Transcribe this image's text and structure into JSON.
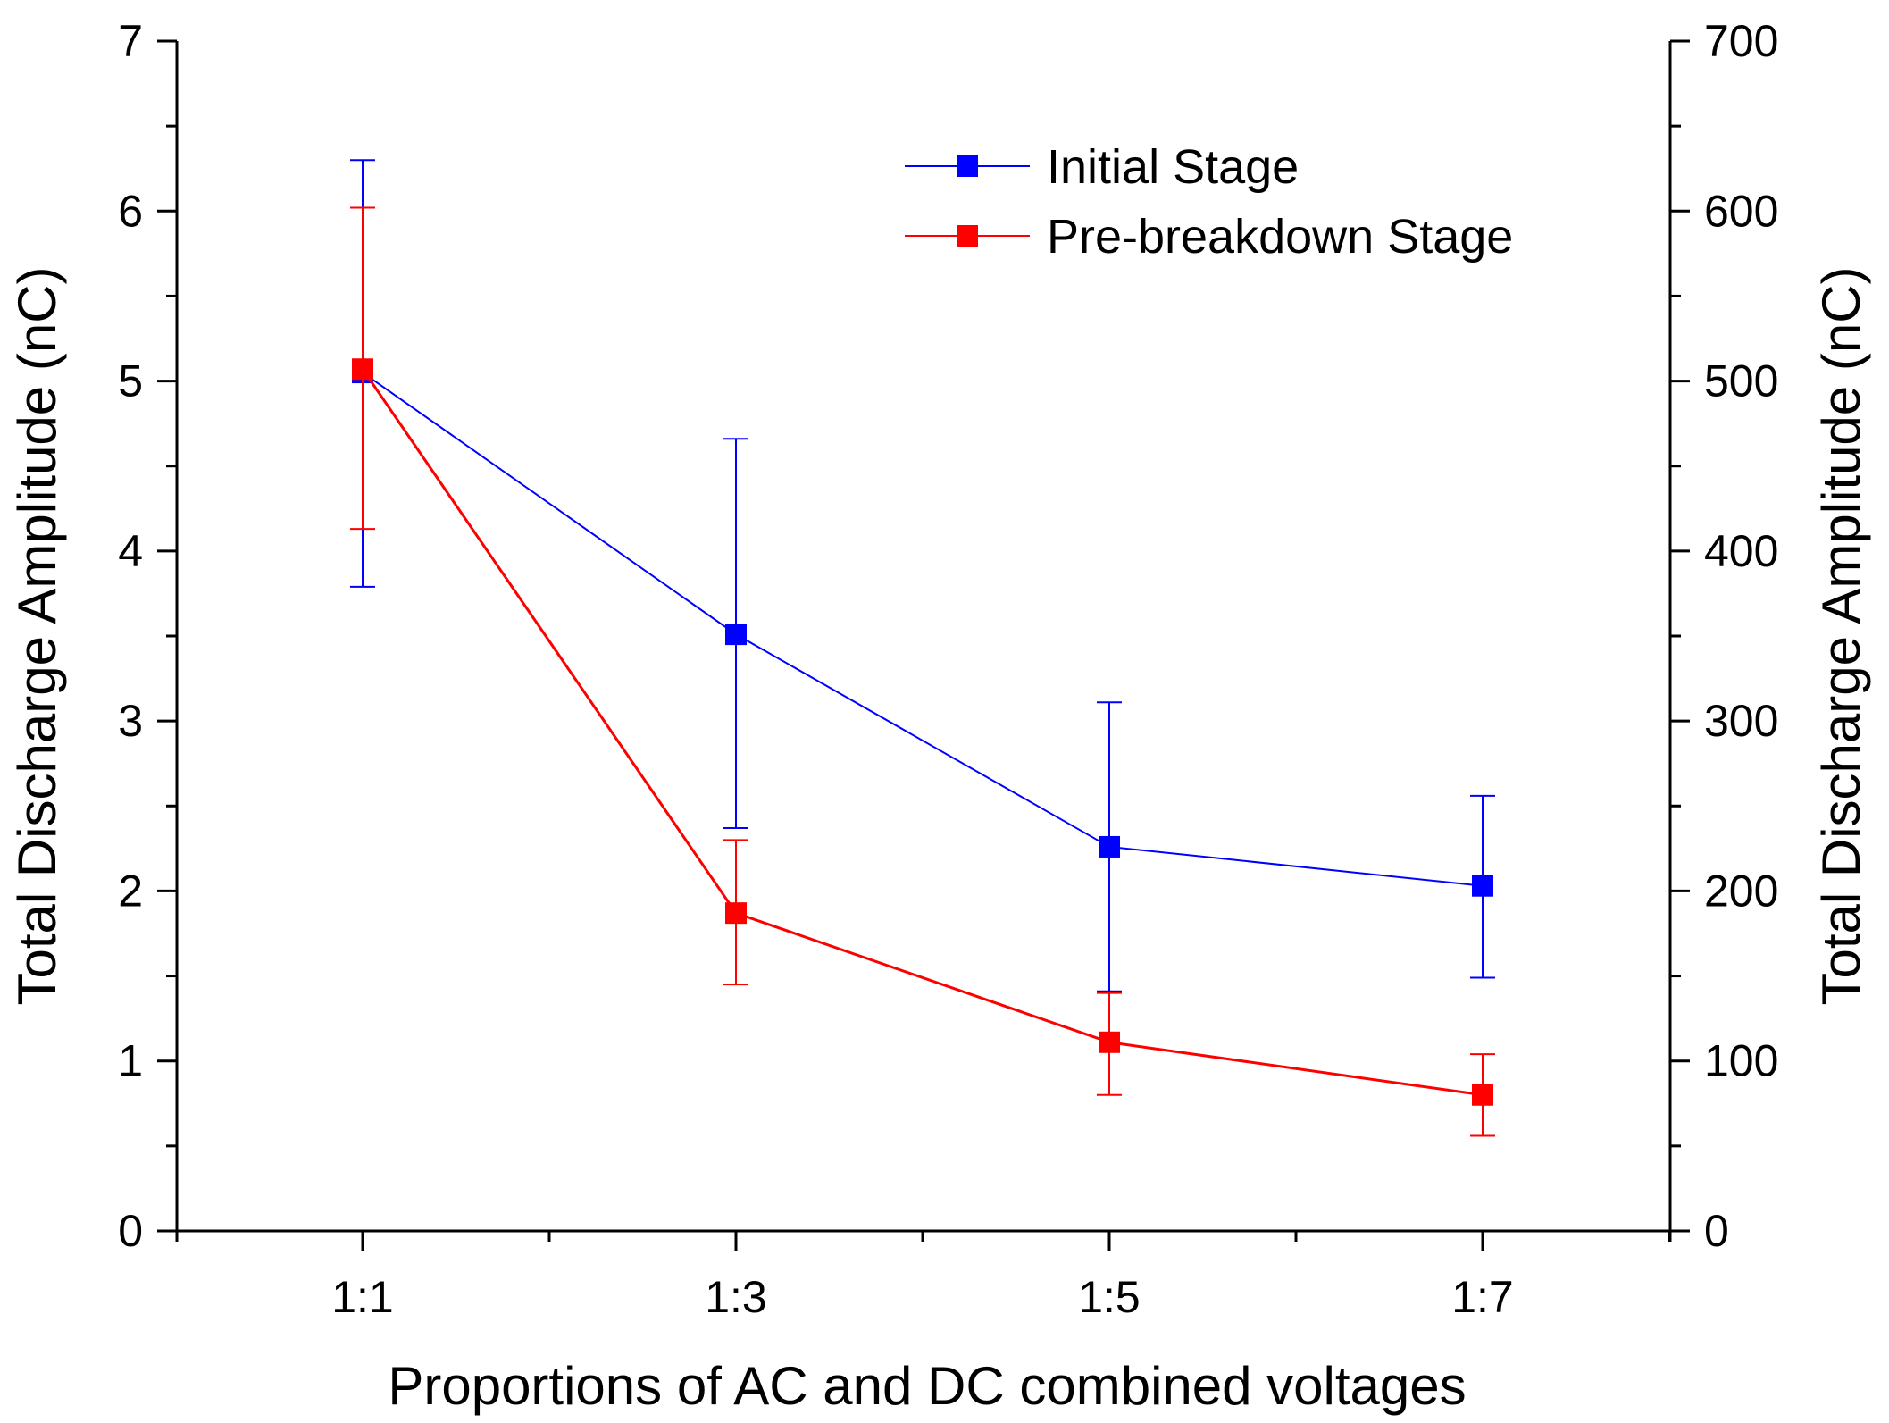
{
  "chart_data": {
    "type": "line",
    "categories": [
      "1:1",
      "1:3",
      "1:5",
      "1:7"
    ],
    "xlabel": "Proportions of AC and DC combined voltages",
    "ylabel_left": "Total Discharge Amplitude (nC)",
    "ylabel_right": "Total Discharge Amplitude (nC)",
    "ylim_left": [
      0,
      7
    ],
    "ylim_right": [
      0,
      700
    ],
    "yticks_left": [
      "0",
      "1",
      "2",
      "3",
      "4",
      "5",
      "6",
      "7"
    ],
    "yticks_right": [
      "0",
      "100",
      "200",
      "300",
      "400",
      "500",
      "600",
      "700"
    ],
    "grid": false,
    "legend_position": "top-right",
    "series": [
      {
        "name": "Initial Stage",
        "axis": "left",
        "color": "#0000ff",
        "values": [
          5.05,
          3.51,
          2.26,
          2.03
        ],
        "error_low": [
          3.79,
          2.37,
          1.41,
          1.49
        ],
        "error_high": [
          6.3,
          4.66,
          3.11,
          2.56
        ]
      },
      {
        "name": "Pre-breakdown Stage",
        "axis": "right",
        "color": "#ff0000",
        "values": [
          507,
          187,
          111,
          80
        ],
        "error_low": [
          413,
          145,
          80,
          56
        ],
        "error_high": [
          602,
          230,
          140,
          104
        ]
      }
    ]
  }
}
